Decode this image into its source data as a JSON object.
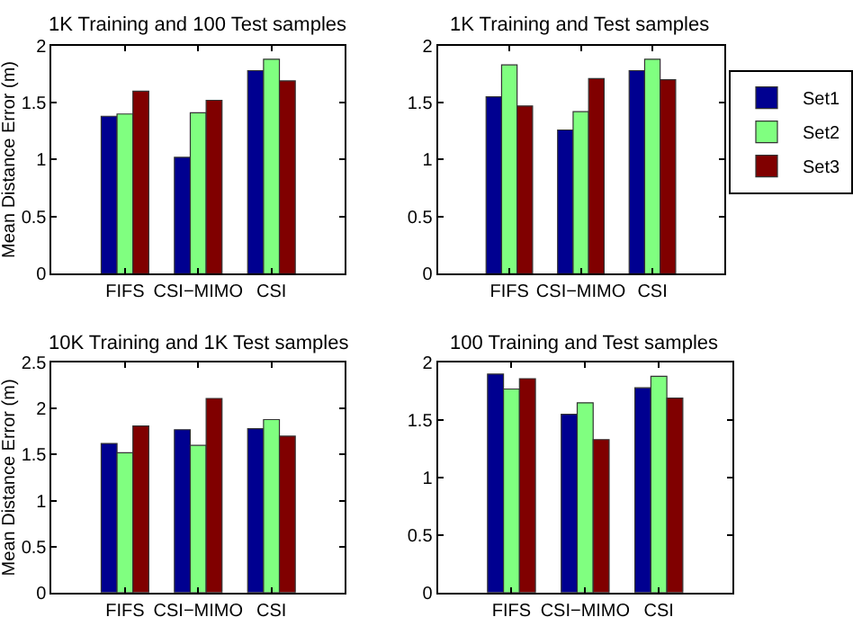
{
  "chart_data": [
    {
      "type": "bar",
      "title": "1K Training and 100 Test samples",
      "ylabel": "Mean Distance Error (m)",
      "categories": [
        "FIFS",
        "CSI−MIMO",
        "CSI"
      ],
      "ylim": [
        0,
        2
      ],
      "yticks": [
        0,
        0.5,
        1,
        1.5,
        2
      ],
      "legend": false,
      "series": [
        {
          "color": "#000090",
          "values": [
            1.38,
            1.02,
            1.78
          ]
        },
        {
          "color": "#80ff80",
          "values": [
            1.4,
            1.41,
            1.88
          ]
        },
        {
          "color": "#800000",
          "values": [
            1.6,
            1.52,
            1.69
          ]
        }
      ]
    },
    {
      "type": "bar",
      "title": "1K Training and Test samples",
      "categories": [
        "FIFS",
        "CSI−MIMO",
        "CSI"
      ],
      "ylim": [
        0,
        2
      ],
      "yticks": [
        0,
        0.5,
        1,
        1.5,
        2
      ],
      "legend": "right",
      "series": [
        {
          "name": "Set1",
          "color": "#000090",
          "values": [
            1.55,
            1.26,
            1.78
          ]
        },
        {
          "name": "Set2",
          "color": "#80ff80",
          "values": [
            1.83,
            1.42,
            1.88
          ]
        },
        {
          "name": "Set3",
          "color": "#800000",
          "values": [
            1.47,
            1.71,
            1.7
          ]
        }
      ]
    },
    {
      "type": "bar",
      "title": "10K Training and 1K Test samples",
      "ylabel": "Mean Distance Error (m)",
      "categories": [
        "FIFS",
        "CSI−MIMO",
        "CSI"
      ],
      "ylim": [
        0,
        2.5
      ],
      "yticks": [
        0,
        0.5,
        1,
        1.5,
        2,
        2.5
      ],
      "legend": false,
      "series": [
        {
          "color": "#000090",
          "values": [
            1.62,
            1.77,
            1.78
          ]
        },
        {
          "color": "#80ff80",
          "values": [
            1.52,
            1.6,
            1.88
          ]
        },
        {
          "color": "#800000",
          "values": [
            1.81,
            2.11,
            1.7
          ]
        }
      ]
    },
    {
      "type": "bar",
      "title": "100 Training and Test samples",
      "categories": [
        "FIFS",
        "CSI−MIMO",
        "CSI"
      ],
      "ylim": [
        0,
        2
      ],
      "yticks": [
        0,
        0.5,
        1,
        1.5,
        2
      ],
      "legend": false,
      "series": [
        {
          "color": "#000090",
          "values": [
            1.9,
            1.55,
            1.78
          ]
        },
        {
          "color": "#80ff80",
          "values": [
            1.77,
            1.65,
            1.88
          ]
        },
        {
          "color": "#800000",
          "values": [
            1.86,
            1.33,
            1.69
          ]
        }
      ]
    }
  ]
}
